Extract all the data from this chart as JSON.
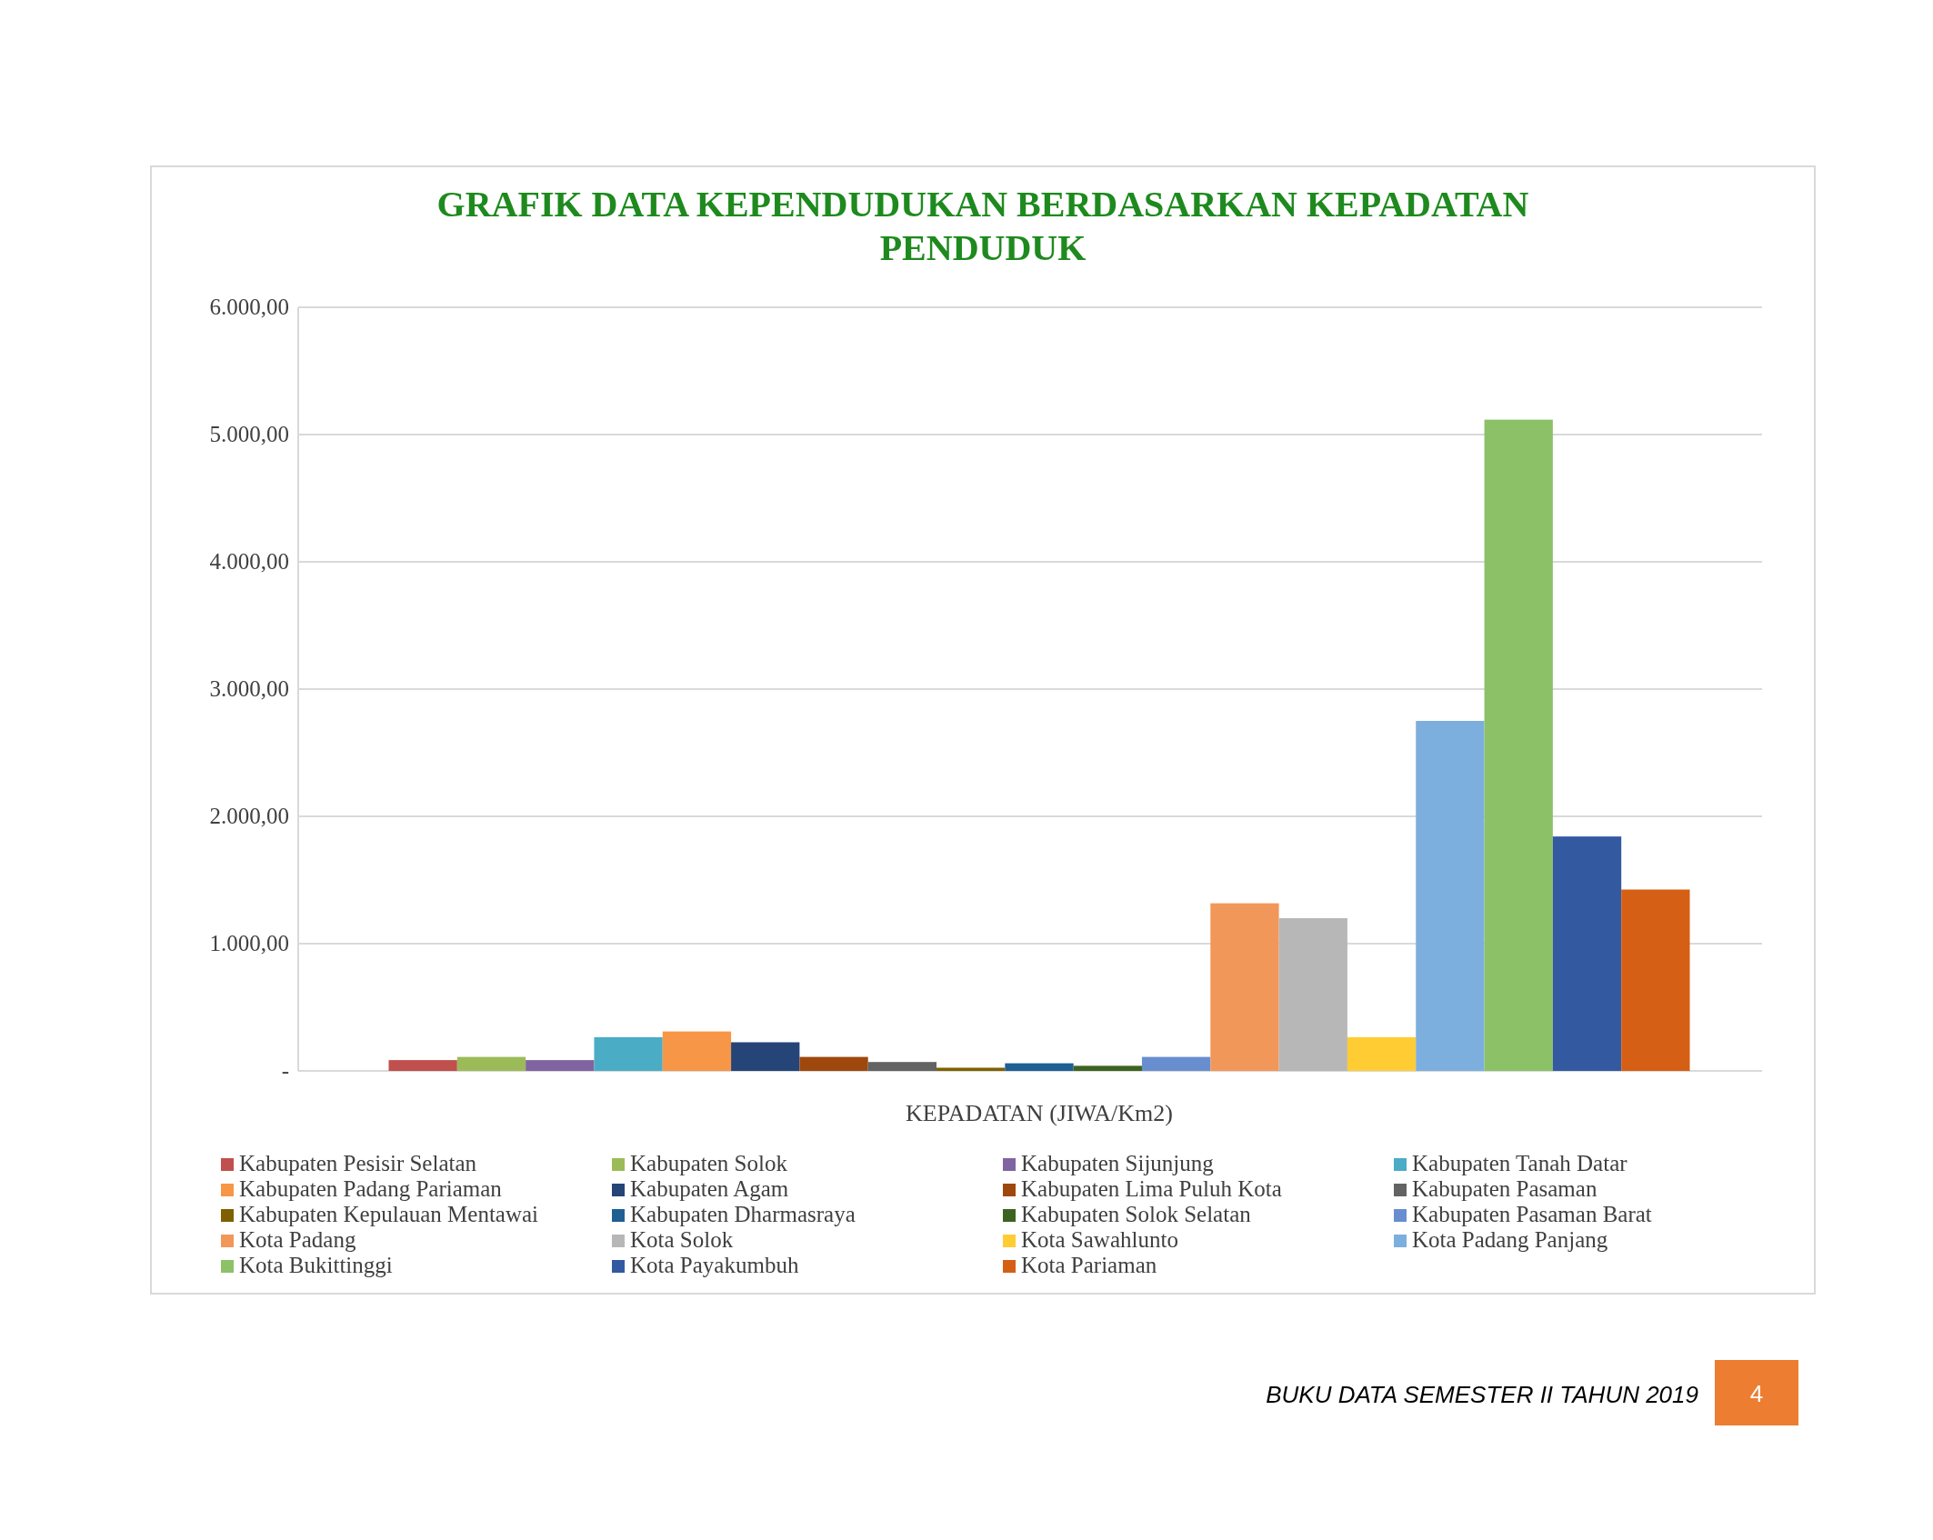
{
  "chart_data": {
    "type": "bar",
    "title": "GRAFIK DATA KEPENDUDUKAN  BERDASARKAN KEPADATAN PENDUDUK",
    "xlabel": "KEPADATAN (JIWA/Km2)",
    "categories": [
      null
    ],
    "series": [
      {
        "name": "Kabupaten Pesisir Selatan",
        "color": "#c0504d",
        "values": [
          85
        ]
      },
      {
        "name": "Kabupaten Solok",
        "color": "#9bbb59",
        "values": [
          110
        ]
      },
      {
        "name": "Kabupaten Sijunjung",
        "color": "#8064a2",
        "values": [
          85
        ]
      },
      {
        "name": "Kabupaten Tanah Datar",
        "color": "#4bacc6",
        "values": [
          265
        ]
      },
      {
        "name": "Kabupaten Padang Pariaman",
        "color": "#f79646",
        "values": [
          310
        ]
      },
      {
        "name": "Kabupaten Agam",
        "color": "#254478",
        "values": [
          225
        ]
      },
      {
        "name": "Kabupaten Lima Puluh Kota",
        "color": "#9e480e",
        "values": [
          110
        ]
      },
      {
        "name": "Kabupaten Pasaman",
        "color": "#636363",
        "values": [
          70
        ]
      },
      {
        "name": "Kabupaten Kepulauan Mentawai",
        "color": "#7f6000",
        "values": [
          25
        ]
      },
      {
        "name": "Kabupaten Dharmasraya",
        "color": "#1f5f92",
        "values": [
          60
        ]
      },
      {
        "name": "Kabupaten Solok Selatan",
        "color": "#3d6321",
        "values": [
          40
        ]
      },
      {
        "name": "Kabupaten Pasaman Barat",
        "color": "#698ed0",
        "values": [
          110
        ]
      },
      {
        "name": "Kota Padang",
        "color": "#f1975a",
        "values": [
          1317
        ]
      },
      {
        "name": "Kota Solok",
        "color": "#b7b7b7",
        "values": [
          1200
        ]
      },
      {
        "name": "Kota Sawahlunto",
        "color": "#ffcd33",
        "values": [
          265
        ]
      },
      {
        "name": "Kota Padang Panjang",
        "color": "#7cafdd",
        "values": [
          2750
        ]
      },
      {
        "name": "Kota Bukittinggi",
        "color": "#8cc168",
        "values": [
          5117
        ]
      },
      {
        "name": "Kota Payakumbuh",
        "color": "#335aa1",
        "values": [
          1842
        ]
      },
      {
        "name": "Kota Pariaman",
        "color": "#d55f14",
        "values": [
          1425
        ]
      }
    ],
    "ylim": [
      0,
      6000
    ],
    "yticks": [
      {
        "value": 0,
        "label": "-"
      },
      {
        "value": 1000,
        "label": "1.000,00"
      },
      {
        "value": 2000,
        "label": "2.000,00"
      },
      {
        "value": 3000,
        "label": "3.000,00"
      },
      {
        "value": 4000,
        "label": "4.000,00"
      },
      {
        "value": 5000,
        "label": "5.000,00"
      },
      {
        "value": 6000,
        "label": "6.000,00"
      }
    ],
    "grid": "y",
    "legend": "bottom",
    "annotations": [
      "BUKU DATA SEMESTER II TAHUN 2019",
      "4"
    ]
  }
}
